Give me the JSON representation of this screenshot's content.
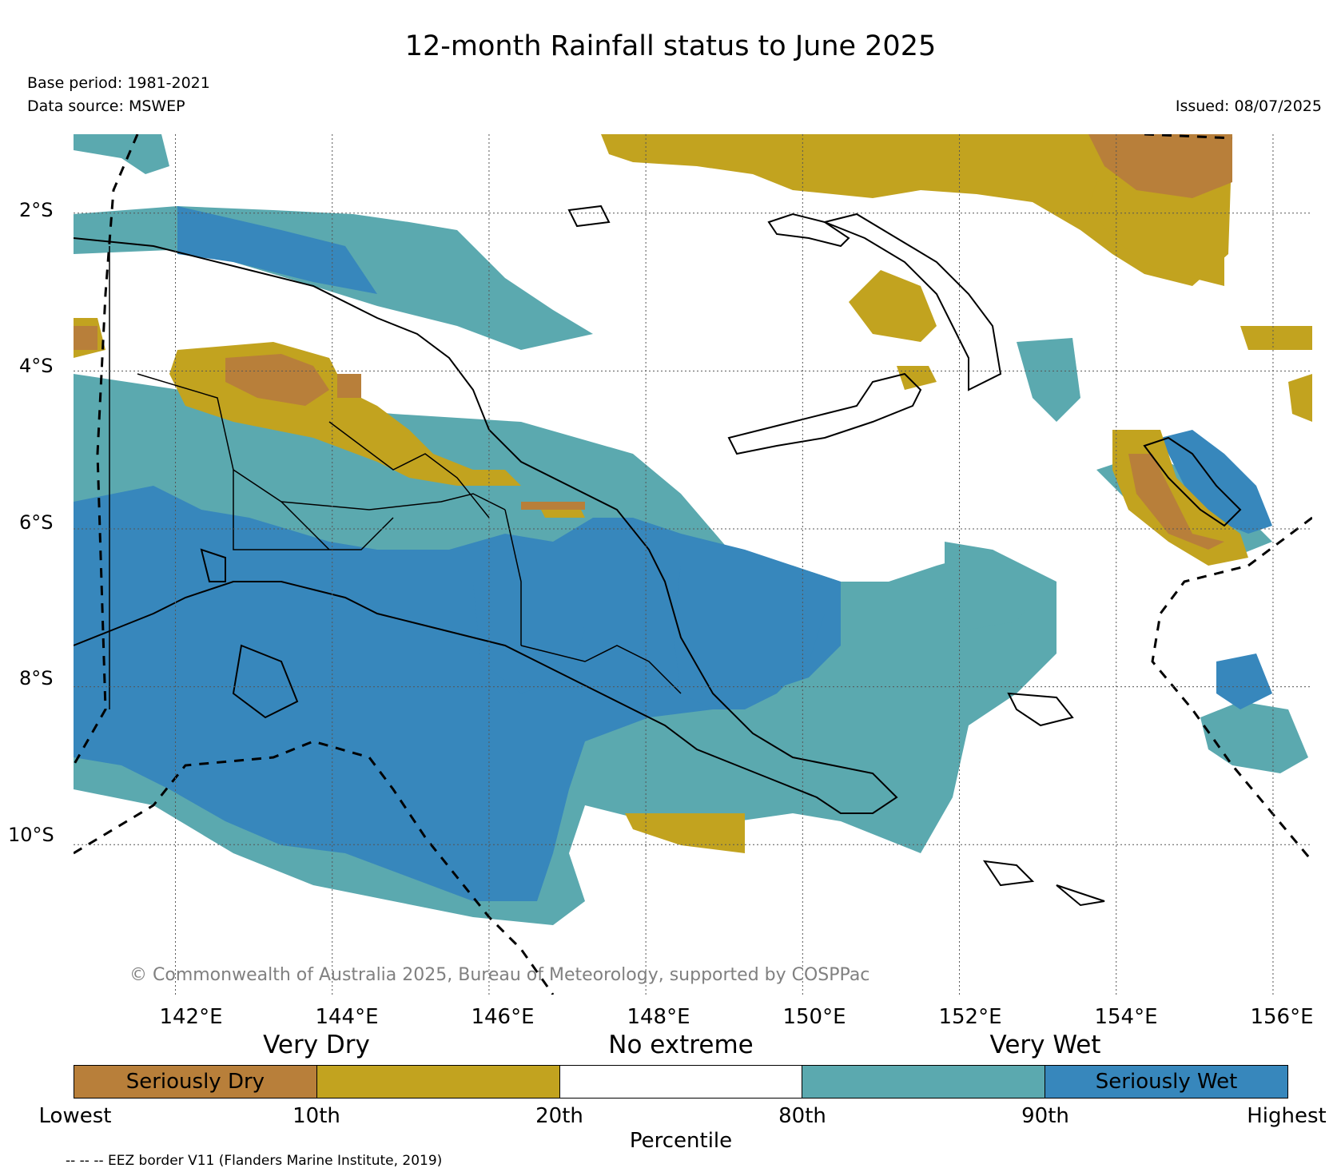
{
  "title": "12-month Rainfall status to June 2025",
  "base_period": "Base period: 1981-2021",
  "data_source": "Data source: MSWEP",
  "issued": "Issued: 08/07/2025",
  "copyright": "© Commonwealth of Australia 2025, Bureau of Meteorology, supported by COSPPac",
  "map": {
    "lon_range": [
      140.7,
      156.5
    ],
    "lat_range": [
      -11.9,
      -1.0
    ],
    "lat_ticks": [
      "2°S",
      "4°S",
      "6°S",
      "8°S",
      "10°S"
    ],
    "lon_ticks": [
      "142°E",
      "144°E",
      "146°E",
      "148°E",
      "150°E",
      "152°E",
      "154°E",
      "156°E"
    ],
    "grid": "dotted"
  },
  "legend": {
    "categories": [
      "Very Dry",
      "No extreme",
      "Very Wet"
    ],
    "segments": [
      {
        "label": "Seriously Dry",
        "color": "#b87f3a"
      },
      {
        "label": "",
        "color": "#c2a31f"
      },
      {
        "label": "",
        "color": "#ffffff"
      },
      {
        "label": "",
        "color": "#5ba9af"
      },
      {
        "label": "Seriously Wet",
        "color": "#3787bc"
      }
    ],
    "percentiles": [
      "Lowest",
      "10th",
      "20th",
      "80th",
      "90th",
      "Highest"
    ],
    "axis_label": "Percentile"
  },
  "eez_note": "-- -- -- EEZ border V11 (Flanders Marine Institute, 2019)"
}
